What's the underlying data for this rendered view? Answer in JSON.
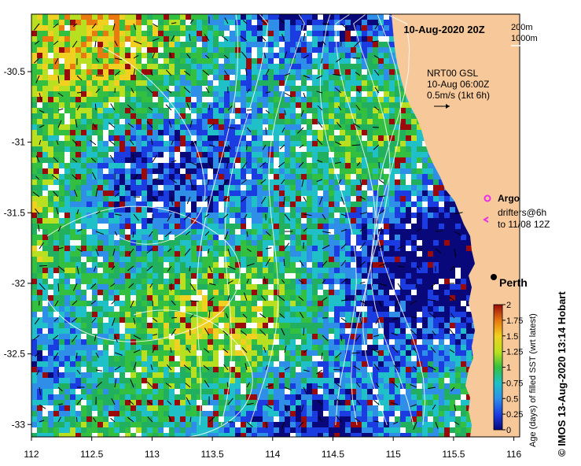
{
  "title": "10-Aug-2020 20Z",
  "contour_legend": {
    "line1": "200m",
    "line2": "1000m"
  },
  "current_info": {
    "line1": "NRT00 GSL",
    "line2": "10-Aug 06:00Z",
    "line3": "0.5m/s (1kt 6h)"
  },
  "argo_label": "Argo",
  "drifter_label": {
    "line1": "drifters@6h",
    "line2": "to 11/08 12Z"
  },
  "city_label": "Perth",
  "credit": "© IMOS 13-Aug-2020 13:14 Hobart",
  "colorbar": {
    "label": "Age (days) of filled SST (wrt latest)",
    "ticks": [
      "2",
      "1.75",
      "1.5",
      "1.25",
      "1",
      "0.75",
      "0.5",
      "0.25",
      "0"
    ],
    "range": [
      0,
      2
    ]
  },
  "axes": {
    "x_ticks": [
      "112",
      "112.5",
      "113",
      "113.5",
      "114",
      "114.5",
      "115",
      "115.5",
      "116"
    ],
    "y_ticks": [
      "-30.5",
      "-31",
      "-31.5",
      "-32",
      "-32.5",
      "-33"
    ],
    "x_range": [
      112,
      116.1
    ],
    "y_range": [
      -30.1,
      -33.2
    ]
  },
  "colors": {
    "land": "#F7C99A",
    "argo": "#E830E8",
    "drifter": "#E830E8"
  }
}
